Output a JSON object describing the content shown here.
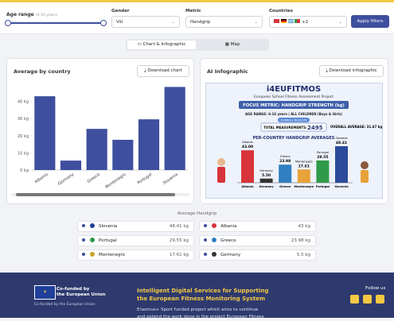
{
  "header": {
    "age_label": "Age range",
    "age_hint": "(6-16 years)",
    "gender_label": "Gender",
    "gender_value": "Všl",
    "metric_label": "Metric",
    "metric_value": "Handgrip",
    "countries_label": "Countries",
    "countries_more": "+2",
    "apply": "Apply filters"
  },
  "tabs": [
    "Chart & Infographic",
    "Map"
  ],
  "chart_card": {
    "title": "Average by country",
    "download": "Download chart"
  },
  "chart_data": {
    "type": "bar",
    "categories": [
      "Albania",
      "Germany",
      "Greece",
      "Montenegro",
      "Portugal",
      "Slovenia"
    ],
    "values": [
      43,
      5.5,
      23.98,
      17.61,
      29.55,
      48.41
    ],
    "color": "#3d4f9e",
    "ylim": [
      0,
      50
    ],
    "yticks": [
      {
        "value": 0,
        "label": "0 kg"
      },
      {
        "value": 10,
        "label": "10 kg"
      },
      {
        "value": 20,
        "label": "20 kg"
      },
      {
        "value": 30,
        "label": "30 kg"
      },
      {
        "value": 40,
        "label": "40 kg"
      }
    ],
    "grid": false
  },
  "infographic_card": {
    "title": "AI Infographic",
    "download": "Download infographic"
  },
  "infographic": {
    "brand": "i4EUFITMOS",
    "subtitle": "European School Fitness Assessment Project",
    "focus": "FOCUS METRIC: HANDGRIP STRENGTH (kg)",
    "age": "AGE RANGE: 6-16 years | ALL CHILDREN (Boys & Girls)",
    "results": "OVERALL RESULTS",
    "total_label": "TOTAL MEASUREMENTS:",
    "total": 2495,
    "average": "OVERALL AVERAGE: 31.67 kg",
    "bars_title": "PER-COUNTRY HANDGRIP AVERAGES",
    "bars": [
      {
        "name": "Albania",
        "value": 43,
        "label": "43.00",
        "color": "#d8343c"
      },
      {
        "name": "Germany",
        "value": 5.5,
        "label": "5.50",
        "color": "#333333"
      },
      {
        "name": "Greece",
        "value": 23.98,
        "label": "23.98",
        "color": "#2f7fc1"
      },
      {
        "name": "Montenegro",
        "value": 17.61,
        "label": "17.61",
        "color": "#e8a23a"
      },
      {
        "name": "Portugal",
        "value": 29.55,
        "label": "29.55",
        "color": "#2f9a4a"
      },
      {
        "name": "Slovenia",
        "value": 48.41,
        "label": "48.41",
        "color": "#2c4a9a"
      }
    ]
  },
  "ranking": {
    "title": "Average Handgrip",
    "items": [
      {
        "country": "Slovenia",
        "value": "48.41 kg"
      },
      {
        "country": "Albania",
        "value": "43 kg"
      },
      {
        "country": "Portugal",
        "value": "29.55 kg"
      },
      {
        "country": "Greece",
        "value": "23.98 kg"
      },
      {
        "country": "Montenegro",
        "value": "17.61 kg"
      },
      {
        "country": "Germany",
        "value": "5.5 kg"
      }
    ]
  },
  "footer": {
    "eu_line1": "Co-funded by",
    "eu_line2": "the European Union",
    "eu_caption": "Co-funded by the European Union",
    "title_line1": "Intelligent Digital Services for Supporting",
    "title_line2": "the European Fitness Monitoring System",
    "text_line1": "Erasmus+ Sport funded project which aims to continue",
    "text_line2": "and extend the work done in the project European Fitness",
    "follow": "Follow us"
  }
}
